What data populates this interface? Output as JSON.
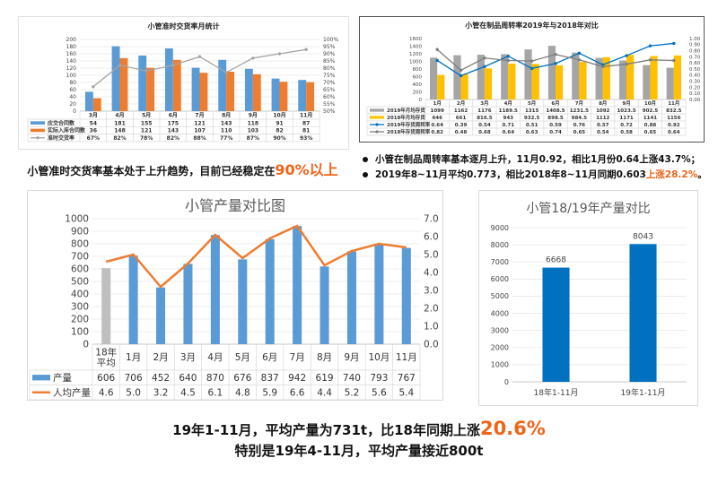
{
  "chart_data": [
    {
      "type": "bar+line",
      "title": "小管准时交货率月统计",
      "categories": [
        "3月",
        "4月",
        "5月",
        "6月",
        "7月",
        "8月",
        "9月",
        "10月",
        "11月"
      ],
      "left_axis": {
        "min": 0,
        "max": 200,
        "step": 20
      },
      "right_axis": {
        "min": 50,
        "max": 100,
        "step": 5,
        "unit": "%"
      },
      "grid": true,
      "legend": "data-table",
      "series": [
        {
          "name": "应交合同数",
          "kind": "bar",
          "axis": "left",
          "color": "#5b9bd5",
          "values": [
            54,
            181,
            155,
            175,
            121,
            143,
            118,
            91,
            87
          ]
        },
        {
          "name": "实际入库合同数",
          "kind": "bar",
          "axis": "left",
          "color": "#ed7d31",
          "values": [
            36,
            148,
            121,
            143,
            107,
            110,
            103,
            82,
            81
          ]
        },
        {
          "name": "准时交货率",
          "kind": "line",
          "axis": "right",
          "color": "#a5a5a5",
          "marker": true,
          "unit": "%",
          "values": [
            67,
            82,
            78,
            82,
            88,
            77,
            87,
            90,
            93
          ]
        }
      ]
    },
    {
      "type": "bar+line",
      "title": "小管在制品周转率2019年与2018年对比",
      "categories": [
        "1月",
        "2月",
        "3月",
        "4月",
        "5月",
        "6月",
        "7月",
        "8月",
        "9月",
        "10月",
        "11月"
      ],
      "left_axis": {
        "min": 0,
        "max": 1600,
        "step": 200
      },
      "right_axis": {
        "min": 0,
        "max": 1,
        "step": 0.1,
        "decimals": 2
      },
      "grid": false,
      "legend": "data-table",
      "series": [
        {
          "name": "2019年月均存货",
          "kind": "bar",
          "axis": "left",
          "color": "#a5a5a5",
          "values": [
            1099,
            1162,
            1176,
            1189.5,
            1315,
            1408.5,
            1231.5,
            1092,
            1023.5,
            902.5,
            832.5
          ]
        },
        {
          "name": "2018年月均存货",
          "kind": "bar",
          "axis": "left",
          "color": "#ffc000",
          "values": [
            646,
            661,
            816.5,
            943,
            932.5,
            898.5,
            984.5,
            1112.0,
            1171,
            1141,
            1156
          ]
        },
        {
          "name": "2019年存货周转率",
          "kind": "line",
          "axis": "right",
          "color": "#0070c0",
          "marker": true,
          "decimals": 2,
          "values": [
            0.64,
            0.39,
            0.54,
            0.71,
            0.51,
            0.59,
            0.76,
            0.57,
            0.72,
            0.88,
            0.92
          ]
        },
        {
          "name": "2018年存货周转率",
          "kind": "line",
          "axis": "right",
          "color": "#7f7f7f",
          "marker": true,
          "decimals": 2,
          "values": [
            0.82,
            0.48,
            0.68,
            0.64,
            0.63,
            0.74,
            0.65,
            0.54,
            0.58,
            0.65,
            0.64
          ]
        }
      ]
    },
    {
      "type": "bar+line",
      "title": "小管产量对比图",
      "categories": [
        "18年\n平均",
        "1月",
        "2月",
        "3月",
        "4月",
        "5月",
        "6月",
        "7月",
        "8月",
        "9月",
        "10月",
        "11月"
      ],
      "left_axis": {
        "min": 0,
        "max": 1000,
        "step": 100
      },
      "right_axis": {
        "min": 0,
        "max": 7,
        "step": 1,
        "decimals": 1
      },
      "grid": true,
      "legend": "data-table",
      "series": [
        {
          "name": "产量",
          "kind": "bar",
          "axis": "left",
          "color": "#5b9bd5",
          "first_color": "#bfbfbf",
          "values": [
            606,
            706,
            452,
            640,
            870,
            676,
            837,
            942,
            619,
            740,
            793,
            767
          ]
        },
        {
          "name": "人均产量",
          "kind": "line",
          "axis": "right",
          "color": "#ed7d31",
          "marker": false,
          "decimals": 1,
          "values": [
            4.6,
            5.0,
            3.2,
            4.5,
            6.1,
            4.8,
            5.9,
            6.6,
            4.4,
            5.2,
            5.6,
            5.4
          ]
        }
      ]
    },
    {
      "type": "bar",
      "title": "小管18/19年产量对比",
      "categories": [
        "18年1-11月",
        "19年1-11月"
      ],
      "left_axis": {
        "min": 0,
        "max": 9000,
        "step": 1000
      },
      "grid": true,
      "data_labels": true,
      "series": [
        {
          "kind": "bar",
          "axis": "left",
          "color": "#0070c0",
          "values": [
            6668,
            8043
          ]
        }
      ]
    }
  ],
  "captions": {
    "c1_text": "小管准时交货率基本处于上升趋势，目前已经稳定在",
    "c1_highlight": "90%以上",
    "b1_text": "小管在制品周转率基本逐月上升，11月0.92，相比1月份0.64上涨43.7%；",
    "b2_text": "2019年8~11月平均0.773，相比2018年8~11月同期0.603",
    "b2_highlight": "上涨28.2%",
    "b2_end": "。",
    "bottom1_text": "19年1-11月，平均产量为731t，比18年同期上涨",
    "bottom1_highlight": "20.6%",
    "bottom2_text": "特别是19年4-11月，平均产量接近800t"
  },
  "colors": {
    "highlight": "#f06418"
  }
}
